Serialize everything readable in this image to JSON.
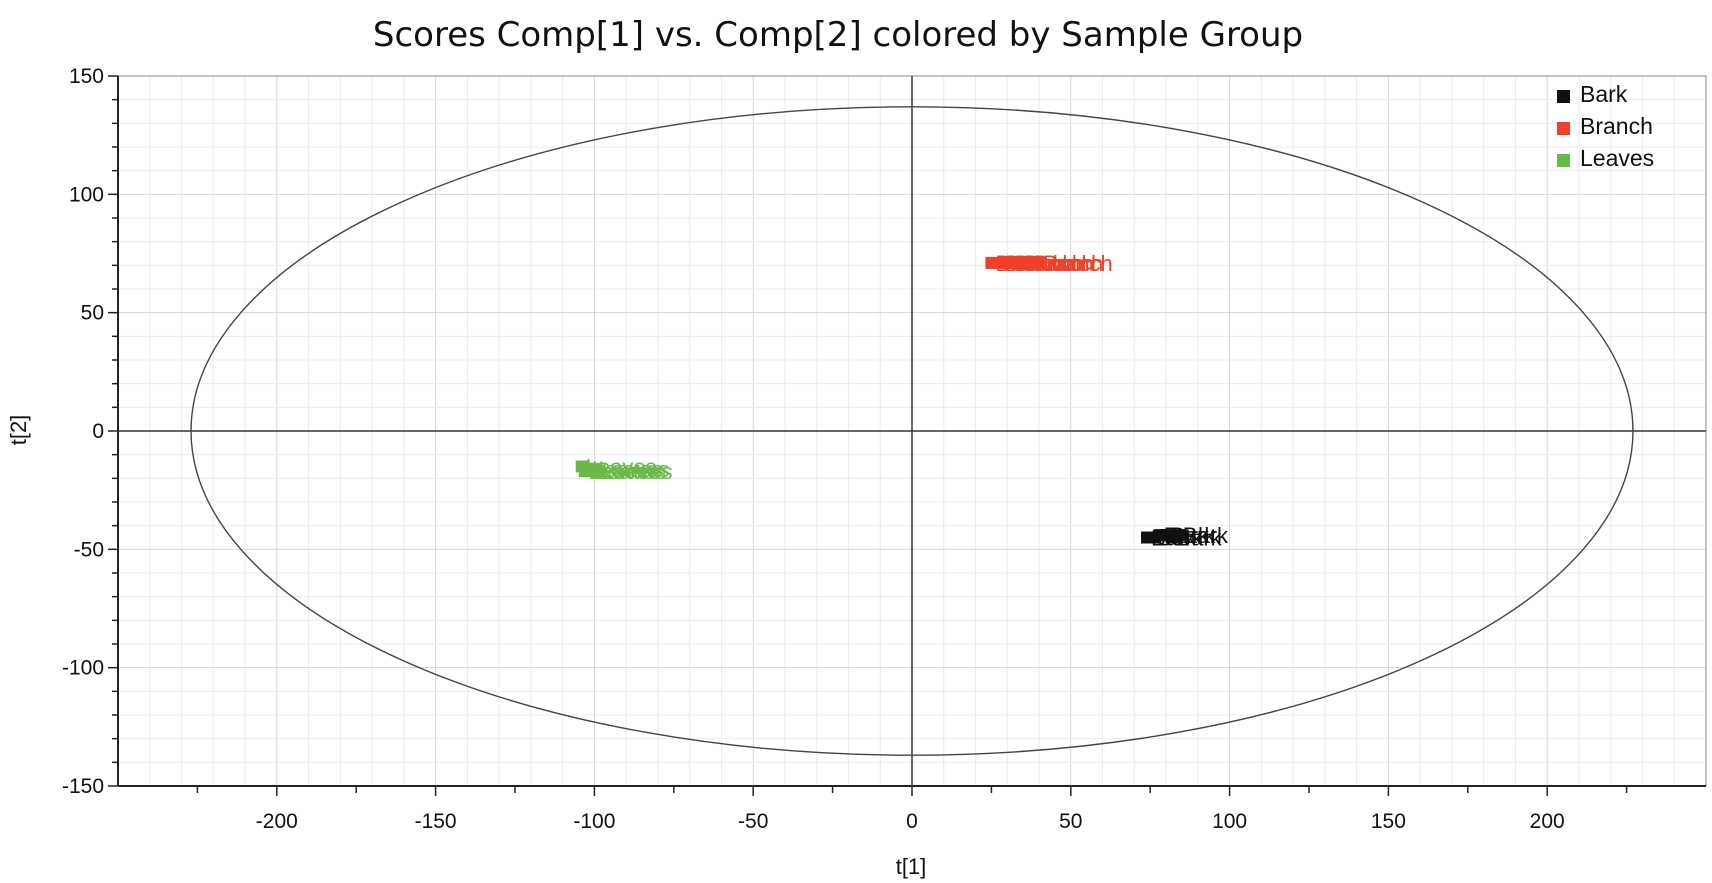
{
  "chart_data": {
    "type": "scatter",
    "title": "Scores Comp[1] vs. Comp[2] colored by Sample Group",
    "xlabel": "t[1]",
    "ylabel": "t[2]",
    "xlim": [
      -250,
      250
    ],
    "ylim": [
      -150,
      150
    ],
    "xticks": [
      -200,
      -150,
      -100,
      -50,
      0,
      50,
      100,
      150,
      200
    ],
    "yticks": [
      -150,
      -100,
      -50,
      0,
      50,
      100,
      150
    ],
    "grid": true,
    "legend_position": "top-right",
    "hotelling_ellipse": {
      "center": [
        0,
        0
      ],
      "semi_axis_x": 227,
      "semi_axis_y": 137
    },
    "series": [
      {
        "name": "Bark",
        "color": "#111111",
        "label_text": "Bark",
        "points": [
          [
            74,
            -45
          ],
          [
            76,
            -45
          ],
          [
            78,
            -44
          ],
          [
            80,
            -44
          ],
          [
            82,
            -45
          ],
          [
            84,
            -44
          ]
        ]
      },
      {
        "name": "Branch",
        "color": "#f0402a",
        "label_text": "Branch",
        "points": [
          [
            25,
            71
          ],
          [
            28,
            71
          ],
          [
            31,
            71
          ],
          [
            34,
            71
          ],
          [
            37,
            71
          ],
          [
            40,
            71
          ]
        ]
      },
      {
        "name": "Leaves",
        "color": "#6ab847",
        "label_text": "Leaves",
        "points": [
          [
            -104,
            -15
          ],
          [
            -103,
            -17
          ],
          [
            -102,
            -16
          ],
          [
            -101,
            -17
          ],
          [
            -100,
            -16
          ],
          [
            -99,
            -17
          ]
        ]
      }
    ]
  }
}
